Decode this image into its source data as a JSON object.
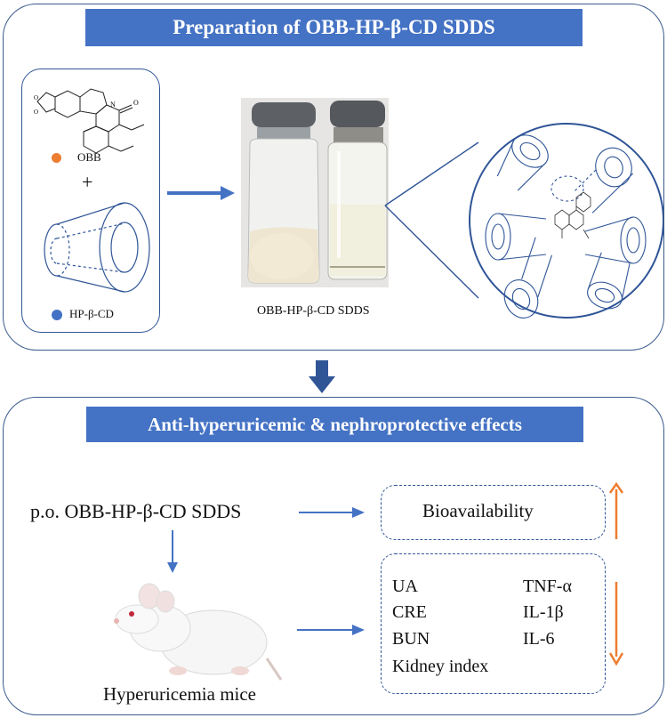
{
  "top_panel": {
    "title": "Preparation of OBB-HP-β-CD SDDS",
    "obb_label": "OBB",
    "plus": "+",
    "hpcd_label": "HP-β-CD",
    "vials_caption": "OBB-HP-β-CD SDDS"
  },
  "bottom_panel": {
    "title": "Anti-hyperuricemic & nephroprotective effects",
    "route_text": "p.o. OBB-HP-β-CD SDDS",
    "bioavailability": "Bioavailability",
    "markers": {
      "ua": "UA",
      "cre": "CRE",
      "bun": "BUN",
      "kidney": "Kidney index",
      "tnf": "TNF-α",
      "il1b": "IL-1β",
      "il6": "IL-6"
    },
    "mice_label": "Hyperuricemia mice"
  },
  "colors": {
    "banner": "#4472c4",
    "arrow_blue": "#4472c4",
    "arrow_orange": "#ed7d31",
    "obb_dot": "#ed7d31",
    "hpcd_dot": "#4472c4",
    "outline": "#2f5597"
  }
}
